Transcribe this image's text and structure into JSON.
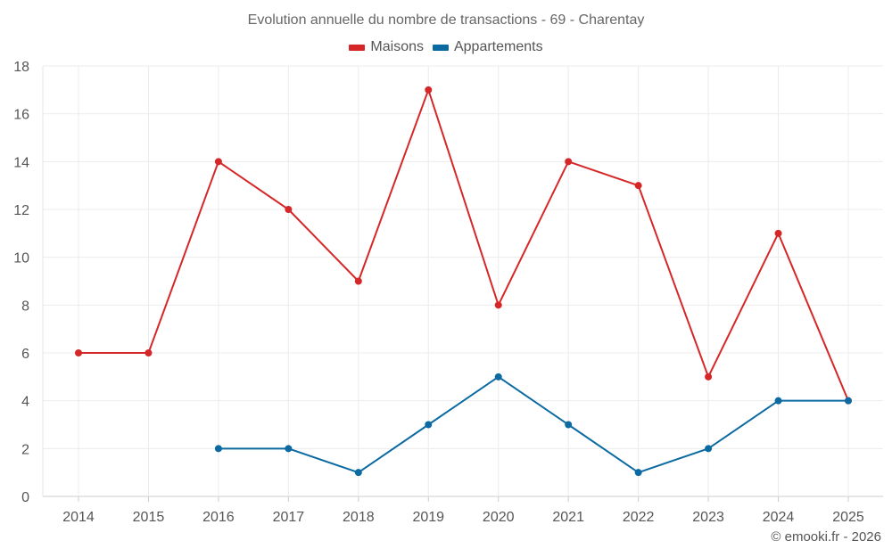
{
  "chart_data": {
    "type": "line",
    "title": "Evolution annuelle du nombre de transactions - 69 - Charentay",
    "categories": [
      "2014",
      "2015",
      "2016",
      "2017",
      "2018",
      "2019",
      "2020",
      "2021",
      "2022",
      "2023",
      "2024",
      "2025"
    ],
    "ylim": [
      0,
      18
    ],
    "yticks": [
      0,
      2,
      4,
      6,
      8,
      10,
      12,
      14,
      16,
      18
    ],
    "grid": true,
    "legend_position": "top-center",
    "series": [
      {
        "name": "Maisons",
        "color": "#d62728",
        "values": [
          6,
          6,
          14,
          12,
          9,
          17,
          8,
          14,
          13,
          5,
          11,
          4
        ]
      },
      {
        "name": "Appartements",
        "color": "#0b6aa2",
        "values": [
          null,
          null,
          2,
          2,
          1,
          3,
          5,
          3,
          1,
          2,
          4,
          4
        ]
      }
    ]
  },
  "credit": "© emooki.fr - 2026"
}
